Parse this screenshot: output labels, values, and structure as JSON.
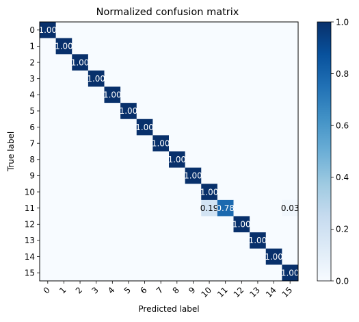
{
  "chart_data": {
    "type": "heatmap",
    "title": "Normalized confusion matrix",
    "xlabel": "Predicted label",
    "ylabel": "True label",
    "x_tick_labels": [
      "0",
      "1",
      "2",
      "3",
      "4",
      "5",
      "6",
      "7",
      "8",
      "9",
      "10",
      "11",
      "12",
      "13",
      "14",
      "15"
    ],
    "y_tick_labels": [
      "0",
      "1",
      "2",
      "3",
      "4",
      "5",
      "6",
      "7",
      "8",
      "9",
      "10",
      "11",
      "12",
      "13",
      "14",
      "15"
    ],
    "colormap": "Blues",
    "vmin": 0.0,
    "vmax": 1.0,
    "colorbar_ticks": [
      "0.0",
      "0.2",
      "0.4",
      "0.6",
      "0.8",
      "1.0"
    ],
    "colorbar_tick_values": [
      0.0,
      0.2,
      0.4,
      0.6,
      0.8,
      1.0
    ],
    "matrix": [
      [
        1,
        0,
        0,
        0,
        0,
        0,
        0,
        0,
        0,
        0,
        0,
        0,
        0,
        0,
        0,
        0
      ],
      [
        0,
        1,
        0,
        0,
        0,
        0,
        0,
        0,
        0,
        0,
        0,
        0,
        0,
        0,
        0,
        0
      ],
      [
        0,
        0,
        1,
        0,
        0,
        0,
        0,
        0,
        0,
        0,
        0,
        0,
        0,
        0,
        0,
        0
      ],
      [
        0,
        0,
        0,
        1,
        0,
        0,
        0,
        0,
        0,
        0,
        0,
        0,
        0,
        0,
        0,
        0
      ],
      [
        0,
        0,
        0,
        0,
        1,
        0,
        0,
        0,
        0,
        0,
        0,
        0,
        0,
        0,
        0,
        0
      ],
      [
        0,
        0,
        0,
        0,
        0,
        1,
        0,
        0,
        0,
        0,
        0,
        0,
        0,
        0,
        0,
        0
      ],
      [
        0,
        0,
        0,
        0,
        0,
        0,
        1,
        0,
        0,
        0,
        0,
        0,
        0,
        0,
        0,
        0
      ],
      [
        0,
        0,
        0,
        0,
        0,
        0,
        0,
        1,
        0,
        0,
        0,
        0,
        0,
        0,
        0,
        0
      ],
      [
        0,
        0,
        0,
        0,
        0,
        0,
        0,
        0,
        1,
        0,
        0,
        0,
        0,
        0,
        0,
        0
      ],
      [
        0,
        0,
        0,
        0,
        0,
        0,
        0,
        0,
        0,
        1,
        0,
        0,
        0,
        0,
        0,
        0
      ],
      [
        0,
        0,
        0,
        0,
        0,
        0,
        0,
        0,
        0,
        0,
        1,
        0,
        0,
        0,
        0,
        0
      ],
      [
        0,
        0,
        0,
        0,
        0,
        0,
        0,
        0,
        0,
        0,
        0.19,
        0.78,
        0,
        0,
        0,
        0.03
      ],
      [
        0,
        0,
        0,
        0,
        0,
        0,
        0,
        0,
        0,
        0,
        0,
        0,
        1,
        0,
        0,
        0
      ],
      [
        0,
        0,
        0,
        0,
        0,
        0,
        0,
        0,
        0,
        0,
        0,
        0,
        0,
        1,
        0,
        0
      ],
      [
        0,
        0,
        0,
        0,
        0,
        0,
        0,
        0,
        0,
        0,
        0,
        0,
        0,
        0,
        1,
        0
      ],
      [
        0,
        0,
        0,
        0,
        0,
        0,
        0,
        0,
        0,
        0,
        0,
        0,
        0,
        0,
        0,
        1
      ]
    ],
    "cell_labels": [
      {
        "row": 0,
        "col": 0,
        "text": "1.00"
      },
      {
        "row": 1,
        "col": 1,
        "text": "1.00"
      },
      {
        "row": 2,
        "col": 2,
        "text": "1.00"
      },
      {
        "row": 3,
        "col": 3,
        "text": "1.00"
      },
      {
        "row": 4,
        "col": 4,
        "text": "1.00"
      },
      {
        "row": 5,
        "col": 5,
        "text": "1.00"
      },
      {
        "row": 6,
        "col": 6,
        "text": "1.00"
      },
      {
        "row": 7,
        "col": 7,
        "text": "1.00"
      },
      {
        "row": 8,
        "col": 8,
        "text": "1.00"
      },
      {
        "row": 9,
        "col": 9,
        "text": "1.00"
      },
      {
        "row": 10,
        "col": 10,
        "text": "1.00"
      },
      {
        "row": 11,
        "col": 10,
        "text": "0.19"
      },
      {
        "row": 11,
        "col": 11,
        "text": "0.78"
      },
      {
        "row": 11,
        "col": 15,
        "text": "0.03"
      },
      {
        "row": 12,
        "col": 12,
        "text": "1.00"
      },
      {
        "row": 13,
        "col": 13,
        "text": "1.00"
      },
      {
        "row": 14,
        "col": 14,
        "text": "1.00"
      },
      {
        "row": 15,
        "col": 15,
        "text": "1.00"
      }
    ],
    "grid": false
  }
}
